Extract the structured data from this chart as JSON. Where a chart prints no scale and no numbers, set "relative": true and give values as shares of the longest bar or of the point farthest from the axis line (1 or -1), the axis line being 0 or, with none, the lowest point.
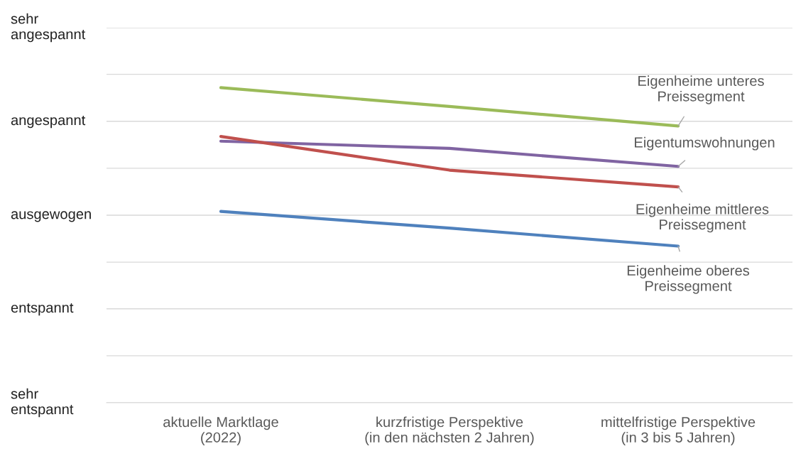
{
  "chart_data": {
    "type": "line",
    "relative": true,
    "categories": [
      "aktuelle Marktlage\n(2022)",
      "kurzfristige Perspektive\n(in den nächsten 2 Jahren)",
      "mittelfristige Perspektive\n(in 3 bis 5 Jahren)"
    ],
    "series": [
      {
        "name": "Eigenheime unteres\nPreissegment",
        "color": "#9bbb59",
        "values": [
          1,
          0.94,
          0.878
        ]
      },
      {
        "name": "Eigentumswohnungen",
        "color": "#8064a2",
        "values": [
          0.83,
          0.807,
          0.75
        ]
      },
      {
        "name": "Eigenheime mittleres\nPreissegment",
        "color": "#c0504d",
        "values": [
          0.845,
          0.738,
          0.685
        ]
      },
      {
        "name": "Eigenheime oberes\nPreissegment",
        "color": "#4f81bd",
        "values": [
          0.607,
          0.554,
          0.497
        ]
      }
    ],
    "ref_lines": [
      {
        "axis": "y",
        "value": 0,
        "label": "sehr\nentspannt",
        "color": "#d9d9d9"
      },
      {
        "axis": "y",
        "value": 0.149,
        "color": "#d9d9d9"
      },
      {
        "axis": "y",
        "value": 0.298,
        "label": "entspannt",
        "color": "#d9d9d9"
      },
      {
        "axis": "y",
        "value": 0.446,
        "color": "#d9d9d9"
      },
      {
        "axis": "y",
        "value": 0.595,
        "label": "ausgewogen",
        "color": "#d9d9d9"
      },
      {
        "axis": "y",
        "value": 0.744,
        "color": "#d9d9d9"
      },
      {
        "axis": "y",
        "value": 0.893,
        "label": "angespannt",
        "color": "#d9d9d9"
      },
      {
        "axis": "y",
        "value": 1.042,
        "color": "#d9d9d9"
      },
      {
        "axis": "y",
        "value": 1.19,
        "label": "sehr\nangespannt",
        "color": "#d9d9d9"
      }
    ],
    "legend": false,
    "marker": "none",
    "line_style": "solid"
  }
}
